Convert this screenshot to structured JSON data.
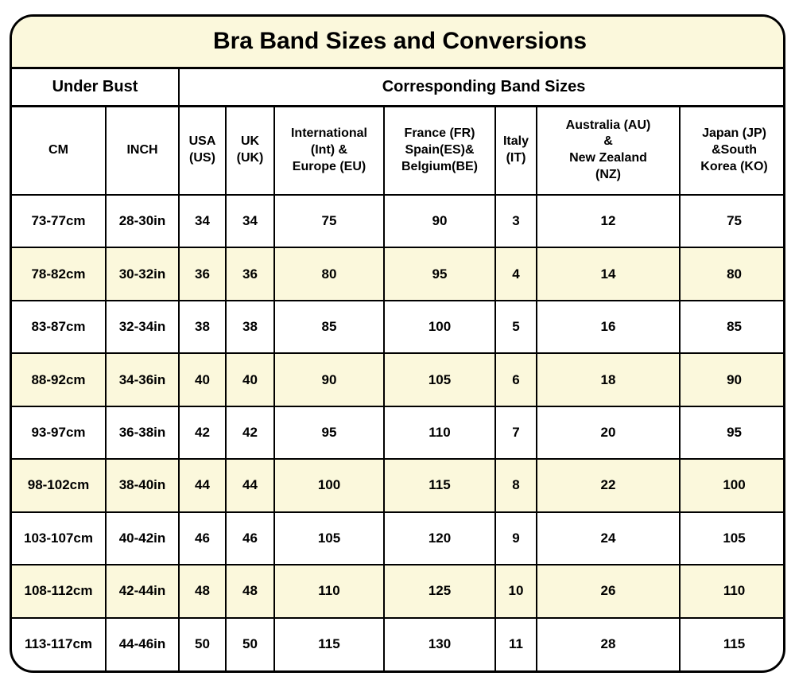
{
  "title": "Bra Band Sizes and Conversions",
  "group_headers": {
    "under_bust": "Under Bust",
    "band_sizes": "Corresponding Band Sizes"
  },
  "columns": [
    "CM",
    "INCH",
    "USA\n(US)",
    "UK\n(UK)",
    "International\n(Int) &\nEurope (EU)",
    "France (FR)\nSpain(ES)&\nBelgium(BE)",
    "Italy\n(IT)",
    "Australia (AU)\n&\nNew Zealand\n(NZ)",
    "Japan (JP)\n&South\nKorea (KO)"
  ],
  "rows": [
    {
      "cells": [
        "73-77cm",
        "28-30in",
        "34",
        "34",
        "75",
        "90",
        "3",
        "12",
        "75"
      ]
    },
    {
      "cells": [
        "78-82cm",
        "30-32in",
        "36",
        "36",
        "80",
        "95",
        "4",
        "14",
        "80"
      ]
    },
    {
      "cells": [
        "83-87cm",
        "32-34in",
        "38",
        "38",
        "85",
        "100",
        "5",
        "16",
        "85"
      ]
    },
    {
      "cells": [
        "88-92cm",
        "34-36in",
        "40",
        "40",
        "90",
        "105",
        "6",
        "18",
        "90"
      ]
    },
    {
      "cells": [
        "93-97cm",
        "36-38in",
        "42",
        "42",
        "95",
        "110",
        "7",
        "20",
        "95"
      ]
    },
    {
      "cells": [
        "98-102cm",
        "38-40in",
        "44",
        "44",
        "100",
        "115",
        "8",
        "22",
        "100"
      ]
    },
    {
      "cells": [
        "103-107cm",
        "40-42in",
        "46",
        "46",
        "105",
        "120",
        "9",
        "24",
        "105"
      ]
    },
    {
      "cells": [
        "108-112cm",
        "42-44in",
        "48",
        "48",
        "110",
        "125",
        "10",
        "26",
        "110"
      ]
    },
    {
      "cells": [
        "113-117cm",
        "44-46in",
        "50",
        "50",
        "115",
        "130",
        "11",
        "28",
        "115"
      ]
    }
  ],
  "colors": {
    "cream": "#FBF8DC",
    "border": "#000000",
    "text": "#000000",
    "background": "#FFFFFF"
  },
  "chart_data": {
    "type": "table",
    "title": "Bra Band Sizes and Conversions",
    "column_groups": [
      "Under Bust",
      "Corresponding Band Sizes"
    ],
    "columns": [
      "CM",
      "INCH",
      "USA (US)",
      "UK (UK)",
      "International (Int) & Europe (EU)",
      "France (FR) Spain(ES)& Belgium(BE)",
      "Italy (IT)",
      "Australia (AU) & New Zealand (NZ)",
      "Japan (JP) &South Korea (KO)"
    ],
    "rows": [
      [
        "73-77cm",
        "28-30in",
        34,
        34,
        75,
        90,
        3,
        12,
        75
      ],
      [
        "78-82cm",
        "30-32in",
        36,
        36,
        80,
        95,
        4,
        14,
        80
      ],
      [
        "83-87cm",
        "32-34in",
        38,
        38,
        85,
        100,
        5,
        16,
        85
      ],
      [
        "88-92cm",
        "34-36in",
        40,
        40,
        90,
        105,
        6,
        18,
        90
      ],
      [
        "93-97cm",
        "36-38in",
        42,
        42,
        95,
        110,
        7,
        20,
        95
      ],
      [
        "98-102cm",
        "38-40in",
        44,
        44,
        100,
        115,
        8,
        22,
        100
      ],
      [
        "103-107cm",
        "40-42in",
        46,
        46,
        105,
        120,
        9,
        24,
        105
      ],
      [
        "108-112cm",
        "42-44in",
        48,
        48,
        110,
        125,
        10,
        26,
        110
      ],
      [
        "113-117cm",
        "44-46in",
        50,
        50,
        115,
        130,
        11,
        28,
        115
      ]
    ]
  }
}
